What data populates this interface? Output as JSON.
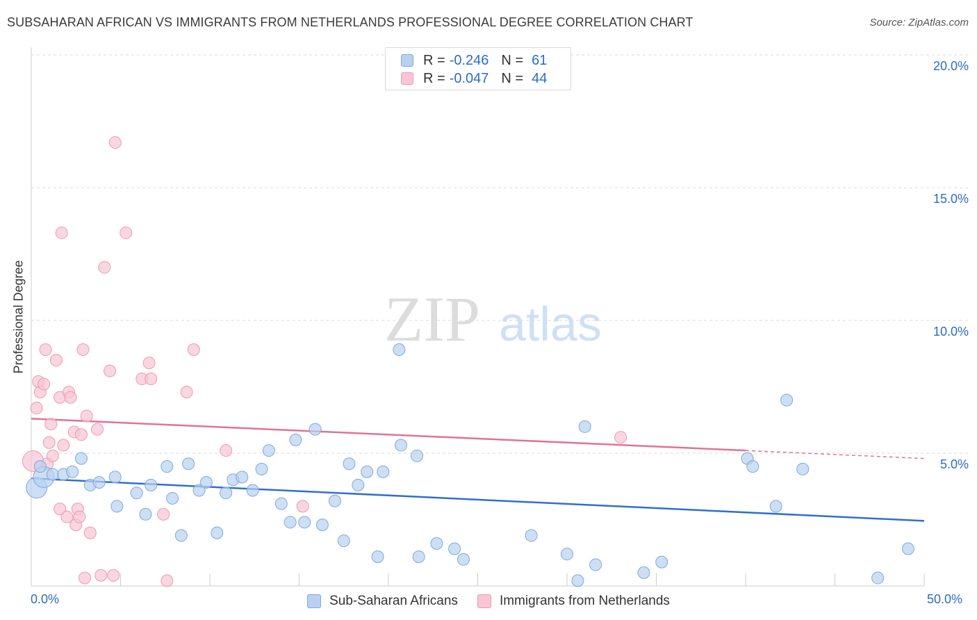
{
  "header": {
    "title": "SUBSAHARAN AFRICAN VS IMMIGRANTS FROM NETHERLANDS PROFESSIONAL DEGREE CORRELATION CHART",
    "source": "Source: ZipAtlas.com"
  },
  "watermark": {
    "zip": "ZIP",
    "atlas": "atlas"
  },
  "legend": {
    "rows": [
      {
        "r_label": "R =",
        "r_value": "-0.246",
        "n_label": "N =",
        "n_value": "61"
      },
      {
        "r_label": "R =",
        "r_value": "-0.047",
        "n_label": "N =",
        "n_value": "44"
      }
    ]
  },
  "bottom_legend": {
    "series1": "Sub-Saharan Africans",
    "series2": "Immigrants from Netherlands"
  },
  "colors": {
    "blue_fill": "#b8d1f0",
    "blue_stroke": "#7fa8dc",
    "blue_line": "#2f6fd0",
    "pink_fill": "#f8c5d4",
    "pink_stroke": "#eb9ab3",
    "pink_line": "#e0729a",
    "grid": "#d9d9d9",
    "tick_text": "#2b6cc4"
  },
  "chart_data": {
    "type": "scatter",
    "title": "SUBSAHARAN AFRICAN VS IMMIGRANTS FROM NETHERLANDS PROFESSIONAL DEGREE CORRELATION CHART",
    "xlabel": "",
    "ylabel": "Professional Degree",
    "xlim": [
      0,
      50
    ],
    "ylim": [
      0,
      20
    ],
    "x_tick_labels": [
      "0.0%",
      "50.0%"
    ],
    "y_tick_labels": [
      "5.0%",
      "10.0%",
      "15.0%",
      "20.0%"
    ],
    "y_ticks": [
      5,
      10,
      15,
      20
    ],
    "grid": true,
    "legend_position": "top-center",
    "series": [
      {
        "name": "Sub-Saharan Africans",
        "color": "#7fa8dc",
        "trend": {
          "x": [
            0,
            50
          ],
          "y": [
            4.05,
            2.45
          ]
        },
        "points": [
          {
            "x": 0.3,
            "y": 3.7,
            "size": "large"
          },
          {
            "x": 0.7,
            "y": 4.1,
            "size": "large"
          },
          {
            "x": 1.2,
            "y": 4.2
          },
          {
            "x": 1.8,
            "y": 4.2
          },
          {
            "x": 2.3,
            "y": 4.3
          },
          {
            "x": 2.8,
            "y": 4.8
          },
          {
            "x": 3.3,
            "y": 3.8
          },
          {
            "x": 3.8,
            "y": 3.9
          },
          {
            "x": 4.7,
            "y": 4.1
          },
          {
            "x": 4.8,
            "y": 3.0
          },
          {
            "x": 5.9,
            "y": 3.5
          },
          {
            "x": 6.4,
            "y": 2.7
          },
          {
            "x": 6.7,
            "y": 3.8
          },
          {
            "x": 7.6,
            "y": 4.5
          },
          {
            "x": 7.9,
            "y": 3.3
          },
          {
            "x": 8.4,
            "y": 1.9
          },
          {
            "x": 8.8,
            "y": 4.6
          },
          {
            "x": 9.4,
            "y": 3.6
          },
          {
            "x": 9.8,
            "y": 3.9
          },
          {
            "x": 10.4,
            "y": 2.0
          },
          {
            "x": 10.9,
            "y": 3.5
          },
          {
            "x": 11.3,
            "y": 4.0
          },
          {
            "x": 11.8,
            "y": 4.1
          },
          {
            "x": 12.4,
            "y": 3.6
          },
          {
            "x": 12.9,
            "y": 4.4
          },
          {
            "x": 13.3,
            "y": 5.1
          },
          {
            "x": 14.0,
            "y": 3.1
          },
          {
            "x": 14.5,
            "y": 2.4
          },
          {
            "x": 14.8,
            "y": 5.5
          },
          {
            "x": 15.3,
            "y": 2.4
          },
          {
            "x": 15.9,
            "y": 5.9
          },
          {
            "x": 16.3,
            "y": 2.3
          },
          {
            "x": 17.0,
            "y": 3.2
          },
          {
            "x": 17.5,
            "y": 1.7
          },
          {
            "x": 17.8,
            "y": 4.6
          },
          {
            "x": 18.3,
            "y": 3.8
          },
          {
            "x": 18.8,
            "y": 4.3
          },
          {
            "x": 19.4,
            "y": 1.1
          },
          {
            "x": 19.7,
            "y": 4.3
          },
          {
            "x": 20.6,
            "y": 8.9
          },
          {
            "x": 20.7,
            "y": 5.3
          },
          {
            "x": 21.6,
            "y": 4.9
          },
          {
            "x": 21.7,
            "y": 1.1
          },
          {
            "x": 22.7,
            "y": 1.6
          },
          {
            "x": 23.7,
            "y": 1.4
          },
          {
            "x": 24.2,
            "y": 1.0
          },
          {
            "x": 28.0,
            "y": 1.9
          },
          {
            "x": 30.0,
            "y": 1.2
          },
          {
            "x": 30.6,
            "y": 0.2
          },
          {
            "x": 31.0,
            "y": 6.0
          },
          {
            "x": 31.6,
            "y": 0.8
          },
          {
            "x": 34.3,
            "y": 0.5
          },
          {
            "x": 35.3,
            "y": 0.9
          },
          {
            "x": 40.1,
            "y": 4.8
          },
          {
            "x": 40.4,
            "y": 4.5
          },
          {
            "x": 42.3,
            "y": 7.0
          },
          {
            "x": 41.7,
            "y": 3.0
          },
          {
            "x": 43.2,
            "y": 4.4
          },
          {
            "x": 47.4,
            "y": 0.3
          },
          {
            "x": 49.1,
            "y": 1.4
          },
          {
            "x": 0.5,
            "y": 4.5
          }
        ]
      },
      {
        "name": "Immigrants from Netherlands",
        "color": "#eb9ab3",
        "trend": {
          "x": [
            0,
            40
          ],
          "y": [
            6.3,
            5.1
          ],
          "dashed_extension": {
            "x": [
              40,
              50
            ],
            "y": [
              5.1,
              4.8
            ]
          }
        },
        "points": [
          {
            "x": 0.1,
            "y": 4.7,
            "size": "large"
          },
          {
            "x": 0.3,
            "y": 6.7
          },
          {
            "x": 0.4,
            "y": 7.7
          },
          {
            "x": 0.5,
            "y": 7.3
          },
          {
            "x": 0.7,
            "y": 7.6
          },
          {
            "x": 0.8,
            "y": 8.9
          },
          {
            "x": 0.9,
            "y": 4.6
          },
          {
            "x": 1.0,
            "y": 5.4
          },
          {
            "x": 1.1,
            "y": 6.1
          },
          {
            "x": 1.2,
            "y": 4.9
          },
          {
            "x": 1.4,
            "y": 8.5
          },
          {
            "x": 1.6,
            "y": 7.1
          },
          {
            "x": 1.6,
            "y": 2.9
          },
          {
            "x": 1.7,
            "y": 13.3
          },
          {
            "x": 1.8,
            "y": 5.3
          },
          {
            "x": 2.0,
            "y": 2.6
          },
          {
            "x": 2.1,
            "y": 7.3
          },
          {
            "x": 2.2,
            "y": 7.1
          },
          {
            "x": 2.4,
            "y": 5.8
          },
          {
            "x": 2.5,
            "y": 2.3
          },
          {
            "x": 2.6,
            "y": 2.9
          },
          {
            "x": 2.7,
            "y": 2.6
          },
          {
            "x": 2.8,
            "y": 5.7
          },
          {
            "x": 2.9,
            "y": 8.9
          },
          {
            "x": 3.0,
            "y": 0.3
          },
          {
            "x": 3.1,
            "y": 6.4
          },
          {
            "x": 3.3,
            "y": 2.0
          },
          {
            "x": 3.7,
            "y": 5.9
          },
          {
            "x": 3.9,
            "y": 0.4
          },
          {
            "x": 4.1,
            "y": 12.0
          },
          {
            "x": 4.4,
            "y": 8.1
          },
          {
            "x": 4.6,
            "y": 0.4
          },
          {
            "x": 4.7,
            "y": 16.7
          },
          {
            "x": 5.3,
            "y": 13.3
          },
          {
            "x": 6.2,
            "y": 7.8
          },
          {
            "x": 6.6,
            "y": 8.4
          },
          {
            "x": 6.7,
            "y": 7.8
          },
          {
            "x": 7.4,
            "y": 2.7
          },
          {
            "x": 7.6,
            "y": 0.2
          },
          {
            "x": 8.7,
            "y": 7.3
          },
          {
            "x": 9.1,
            "y": 8.9
          },
          {
            "x": 10.9,
            "y": 5.1
          },
          {
            "x": 15.2,
            "y": 3.0
          },
          {
            "x": 33.0,
            "y": 5.6
          }
        ]
      }
    ]
  }
}
